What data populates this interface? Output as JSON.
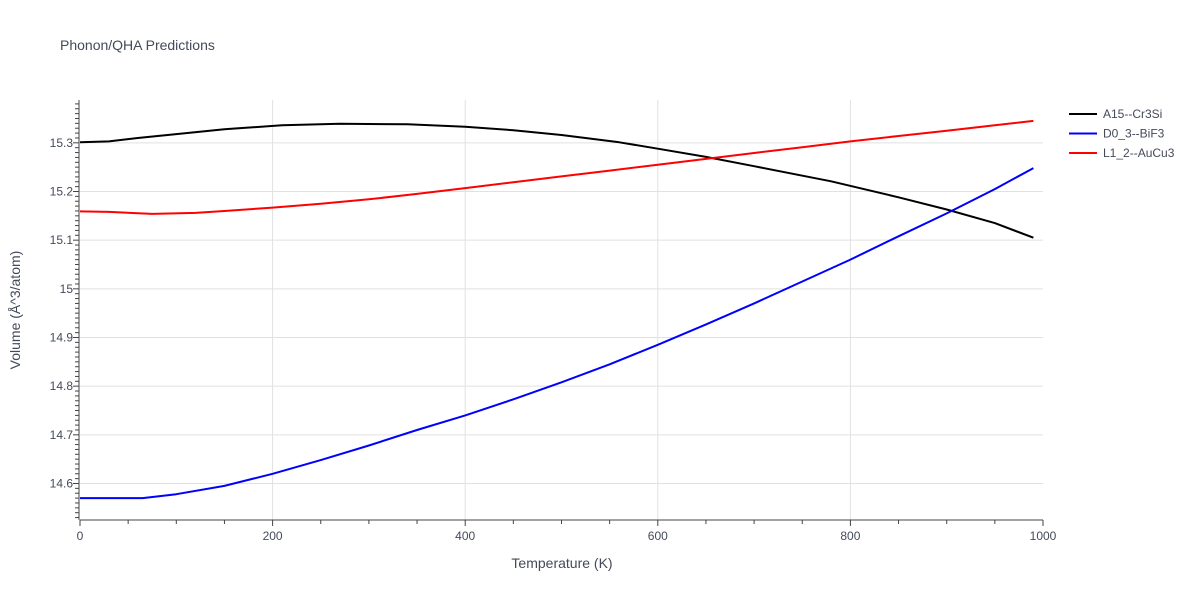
{
  "chart_data": {
    "type": "line",
    "title": "Phonon/QHA Predictions",
    "xlabel": "Temperature (K)",
    "ylabel": "Volume (Å^3/atom)",
    "xlim": [
      0,
      1000
    ],
    "ylim": [
      14.525,
      15.388
    ],
    "x_ticks": [
      0,
      200,
      400,
      600,
      800,
      1000
    ],
    "x_tick_labels": [
      "0",
      "200",
      "400",
      "600",
      "800",
      "1000"
    ],
    "y_ticks": [
      14.6,
      14.7,
      14.8,
      14.9,
      15.0,
      15.1,
      15.2,
      15.3
    ],
    "y_tick_labels": [
      "14.6",
      "14.7",
      "14.8",
      "14.9",
      "15",
      "15.1",
      "15.2",
      "15.3"
    ],
    "grid": true,
    "legend_position": "top-right",
    "series": [
      {
        "name": "A15--Cr3Si",
        "color": "#000000",
        "x": [
          0,
          30,
          60,
          100,
          150,
          210,
          270,
          340,
          400,
          450,
          500,
          560,
          600,
          650,
          700,
          780,
          850,
          900,
          950,
          990
        ],
        "values": [
          15.301,
          15.303,
          15.31,
          15.318,
          15.328,
          15.336,
          15.339,
          15.338,
          15.333,
          15.326,
          15.316,
          15.301,
          15.288,
          15.271,
          15.252,
          15.221,
          15.188,
          15.163,
          15.135,
          15.105
        ]
      },
      {
        "name": "D0_3--BiF3",
        "color": "#0000ff",
        "x": [
          0,
          30,
          65,
          100,
          150,
          200,
          250,
          300,
          350,
          400,
          450,
          500,
          550,
          600,
          650,
          700,
          750,
          800,
          850,
          900,
          950,
          990
        ],
        "values": [
          14.57,
          14.57,
          14.57,
          14.578,
          14.595,
          14.62,
          14.648,
          14.678,
          14.71,
          14.74,
          14.773,
          14.808,
          14.845,
          14.885,
          14.927,
          14.97,
          15.015,
          15.06,
          15.108,
          15.155,
          15.205,
          15.248
        ]
      },
      {
        "name": "L1_2--AuCu3",
        "color": "#ff0000",
        "x": [
          0,
          30,
          75,
          120,
          150,
          200,
          250,
          300,
          350,
          400,
          450,
          500,
          550,
          600,
          650,
          700,
          750,
          800,
          850,
          900,
          950,
          990
        ],
        "values": [
          15.159,
          15.158,
          15.154,
          15.156,
          15.16,
          15.167,
          15.175,
          15.184,
          15.195,
          15.207,
          15.219,
          15.231,
          15.243,
          15.255,
          15.267,
          15.279,
          15.291,
          15.303,
          15.314,
          15.325,
          15.336,
          15.345
        ]
      }
    ]
  }
}
